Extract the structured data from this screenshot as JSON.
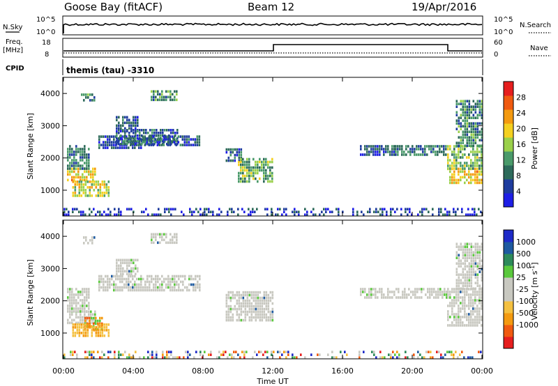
{
  "header": {
    "station": "Goose Bay (fitACF)",
    "beam": "Beam 12",
    "date": "19/Apr/2016"
  },
  "params": {
    "nsky_label": "N.Sky",
    "nsky_ticks": [
      "10^5",
      "10^0"
    ],
    "nsearch_label": "N.Search",
    "nsearch_ticks": [
      "10^5",
      "10^0"
    ],
    "freq_label": "Freq.",
    "freq_unit": "[MHz]",
    "freq_ticks": [
      "18",
      "8"
    ],
    "nave_label": "Nave",
    "nave_ticks": [
      "60",
      "0"
    ],
    "cpid_label": "CPID",
    "cpid_value": "themis (tau) -3310"
  },
  "colors": {
    "power": [
      "#1e1ee6",
      "#1e3c9e",
      "#2d6a5a",
      "#4a9a6a",
      "#9ad04a",
      "#f4d020",
      "#f49a10",
      "#f05a10",
      "#e61e1e"
    ],
    "velocity": [
      "#e61e1e",
      "#f05a10",
      "#f49a10",
      "#f4c040",
      "#c8c8c0",
      "#c8c8c0",
      "#5ac83c",
      "#2d8a5a",
      "#1e5aa0",
      "#1e2ac8"
    ],
    "ground_scatter": "#c8c8c0"
  },
  "chart_data": [
    {
      "type": "heatmap",
      "name": "power",
      "ylabel": "Slant Range [km]",
      "xlabel": "",
      "ylim": [
        200,
        4500
      ],
      "yticks": [
        "1000",
        "2000",
        "3000",
        "4000"
      ],
      "xlim_hours": [
        0,
        24
      ],
      "colorbar_label": "Power [dB]",
      "colorbar_ticks": [
        "4",
        "8",
        "12",
        "16",
        "20",
        "24",
        "28"
      ],
      "clim": [
        0,
        32
      ],
      "regions": [
        {
          "t": [
            0.2,
            1.8
          ],
          "r": [
            1350,
            1700
          ],
          "v": 20
        },
        {
          "t": [
            0.5,
            2.6
          ],
          "r": [
            800,
            1300
          ],
          "v": 18
        },
        {
          "t": [
            0.2,
            1.5
          ],
          "r": [
            1700,
            2400
          ],
          "v": 9
        },
        {
          "t": [
            2.0,
            4.5
          ],
          "r": [
            2300,
            2700
          ],
          "v": 6
        },
        {
          "t": [
            3.0,
            6.5
          ],
          "r": [
            2400,
            2900
          ],
          "v": 8
        },
        {
          "t": [
            4.5,
            7.8
          ],
          "r": [
            2400,
            2700
          ],
          "v": 7
        },
        {
          "t": [
            3.0,
            4.3
          ],
          "r": [
            2800,
            3300
          ],
          "v": 6
        },
        {
          "t": [
            1.0,
            1.8
          ],
          "r": [
            3800,
            4000
          ],
          "v": 10
        },
        {
          "t": [
            5.0,
            6.5
          ],
          "r": [
            3800,
            4100
          ],
          "v": 11
        },
        {
          "t": [
            9.3,
            10.2
          ],
          "r": [
            1900,
            2300
          ],
          "v": 8
        },
        {
          "t": [
            10.0,
            12.0
          ],
          "r": [
            1300,
            2000
          ],
          "v": 14
        },
        {
          "t": [
            17.0,
            19.0
          ],
          "r": [
            2100,
            2400
          ],
          "v": 6
        },
        {
          "t": [
            19.0,
            22.0
          ],
          "r": [
            2100,
            2400
          ],
          "v": 9
        },
        {
          "t": [
            22.0,
            24.0
          ],
          "r": [
            1200,
            1700
          ],
          "v": 20
        },
        {
          "t": [
            22.0,
            24.0
          ],
          "r": [
            1700,
            2400
          ],
          "v": 14
        },
        {
          "t": [
            22.5,
            24.0
          ],
          "r": [
            2400,
            3800
          ],
          "v": 10
        },
        {
          "t": [
            0.0,
            24.0
          ],
          "r": [
            250,
            450
          ],
          "v": 5
        }
      ]
    },
    {
      "type": "heatmap",
      "name": "velocity",
      "ylabel": "Slant Range [km]",
      "xlabel": "Time UT",
      "ylim": [
        200,
        4500
      ],
      "yticks": [
        "1000",
        "2000",
        "3000",
        "4000"
      ],
      "xlim_hours": [
        0,
        24
      ],
      "xticks": [
        "00:00",
        "04:00",
        "08:00",
        "12:00",
        "16:00",
        "20:00",
        "00:00"
      ],
      "colorbar_label": "Velocity [m s",
      "colorbar_label_sup": "-1",
      "colorbar_label_end": "]",
      "colorbar_ticks": [
        "1000",
        "500",
        "100",
        "25",
        "-25",
        "-100",
        "-500",
        "-1000"
      ],
      "regions": [
        {
          "t": [
            0.2,
            1.8
          ],
          "r": [
            1350,
            1700
          ],
          "c": "gs"
        },
        {
          "t": [
            1.2,
            2.2
          ],
          "r": [
            1150,
            1500
          ],
          "c": "neg_mid"
        },
        {
          "t": [
            0.5,
            2.6
          ],
          "r": [
            900,
            1300
          ],
          "c": "neg_low"
        },
        {
          "t": [
            0.2,
            1.5
          ],
          "r": [
            1700,
            2400
          ],
          "c": "gs"
        },
        {
          "t": [
            2.0,
            7.8
          ],
          "r": [
            2300,
            2800
          ],
          "c": "gs"
        },
        {
          "t": [
            3.0,
            4.3
          ],
          "r": [
            2800,
            3300
          ],
          "c": "gs"
        },
        {
          "t": [
            1.0,
            1.8
          ],
          "r": [
            3800,
            4000
          ],
          "c": "gs"
        },
        {
          "t": [
            5.0,
            6.5
          ],
          "r": [
            3800,
            4100
          ],
          "c": "gs"
        },
        {
          "t": [
            9.3,
            12.0
          ],
          "r": [
            1400,
            2300
          ],
          "c": "gs"
        },
        {
          "t": [
            17.0,
            22.0
          ],
          "r": [
            2100,
            2400
          ],
          "c": "gs"
        },
        {
          "t": [
            22.0,
            24.0
          ],
          "r": [
            1200,
            2400
          ],
          "c": "gs"
        },
        {
          "t": [
            22.5,
            24.0
          ],
          "r": [
            2400,
            3800
          ],
          "c": "gs"
        },
        {
          "t": [
            0.0,
            24.0
          ],
          "r": [
            250,
            450
          ],
          "c": "mix"
        }
      ]
    }
  ]
}
